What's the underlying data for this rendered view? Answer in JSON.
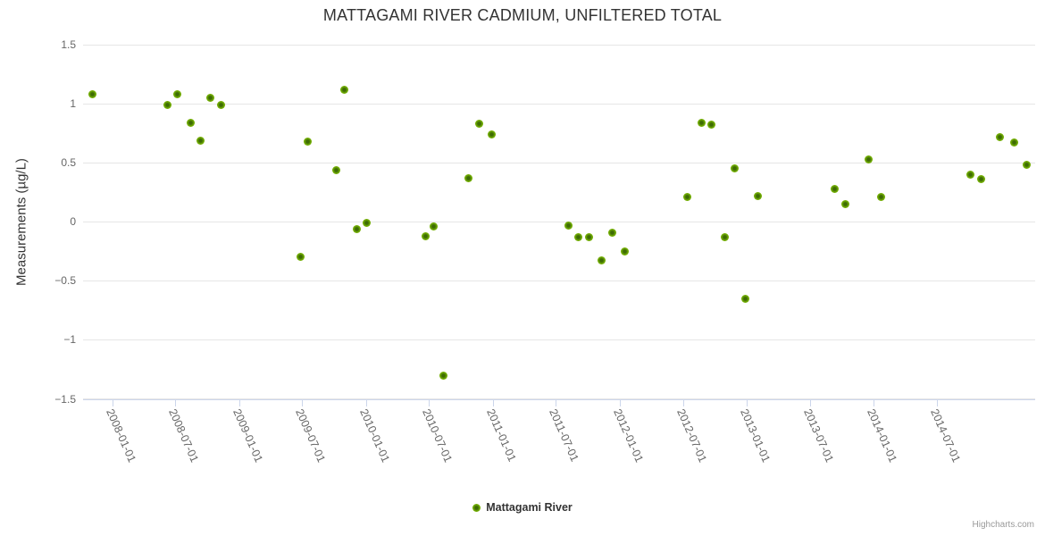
{
  "title": "MATTAGAMI RIVER CADMIUM, UNFILTERED TOTAL",
  "credits": "Highcharts.com",
  "legend": {
    "series_label": "Mattagami River",
    "marker_color": "#7db703"
  },
  "axes": {
    "y_title": "Measurements (µg/L)",
    "y_tick_labels": [
      "1.5",
      "1",
      "0.5",
      "0",
      "−0.5",
      "−1",
      "−1.5"
    ],
    "x_tick_labels": [
      "2008-01-01",
      "2008-07-01",
      "2009-01-01",
      "2009-07-01",
      "2010-01-01",
      "2010-07-01",
      "2011-01-01",
      "2011-07-01",
      "2012-01-01",
      "2012-07-01",
      "2013-01-01",
      "2013-07-01",
      "2014-01-01",
      "2014-07-01"
    ]
  },
  "colors": {
    "point_green": "#7db703",
    "point_core": "#3e6c04",
    "grid": "#e6e6e6",
    "axis_line": "#ccd6eb",
    "text_dark": "#333333",
    "text_muted": "#666666",
    "credits_gray": "#999999"
  },
  "chart_data": {
    "type": "scatter",
    "title": "MATTAGAMI RIVER CADMIUM, UNFILTERED TOTAL",
    "xlabel": "",
    "ylabel": "Measurements (µg/L)",
    "ylim": [
      -1.5,
      1.5
    ],
    "xlim": [
      "2007-10-09",
      "2015-04-10"
    ],
    "grid": "horizontal-only",
    "legend_position": "bottom-center",
    "y_ticks": [
      {
        "label": "1.5",
        "value": 1.5
      },
      {
        "label": "1",
        "value": 1.0
      },
      {
        "label": "0.5",
        "value": 0.5
      },
      {
        "label": "0",
        "value": 0.0
      },
      {
        "label": "−0.5",
        "value": -0.5
      },
      {
        "label": "−1",
        "value": -1.0
      },
      {
        "label": "−1.5",
        "value": -1.5
      }
    ],
    "x_ticks": [
      "2008-01-01",
      "2008-07-01",
      "2009-01-01",
      "2009-07-01",
      "2010-01-01",
      "2010-07-01",
      "2011-01-01",
      "2011-07-01",
      "2012-01-01",
      "2012-07-01",
      "2013-01-01",
      "2013-07-01",
      "2014-01-01",
      "2014-07-01"
    ],
    "series": [
      {
        "name": "Mattagami River",
        "color": "#7db703",
        "points": [
          {
            "date": "2007-11-06",
            "value": 1.08
          },
          {
            "date": "2008-06-09",
            "value": 0.99
          },
          {
            "date": "2008-07-05",
            "value": 1.08
          },
          {
            "date": "2008-08-15",
            "value": 0.84
          },
          {
            "date": "2008-09-12",
            "value": 0.69
          },
          {
            "date": "2008-10-10",
            "value": 1.05
          },
          {
            "date": "2008-11-10",
            "value": 0.99
          },
          {
            "date": "2009-06-26",
            "value": -0.3
          },
          {
            "date": "2009-07-17",
            "value": 0.68
          },
          {
            "date": "2009-10-07",
            "value": 0.44
          },
          {
            "date": "2009-10-29",
            "value": 1.12
          },
          {
            "date": "2009-12-06",
            "value": -0.06
          },
          {
            "date": "2010-01-03",
            "value": -0.01
          },
          {
            "date": "2010-06-21",
            "value": -0.12
          },
          {
            "date": "2010-07-15",
            "value": -0.04
          },
          {
            "date": "2010-08-12",
            "value": -1.3
          },
          {
            "date": "2010-10-23",
            "value": 0.37
          },
          {
            "date": "2010-11-23",
            "value": 0.83
          },
          {
            "date": "2010-12-29",
            "value": 0.74
          },
          {
            "date": "2011-08-07",
            "value": -0.03
          },
          {
            "date": "2011-09-04",
            "value": -0.13
          },
          {
            "date": "2011-10-05",
            "value": -0.13
          },
          {
            "date": "2011-11-10",
            "value": -0.33
          },
          {
            "date": "2011-12-11",
            "value": -0.09
          },
          {
            "date": "2012-01-16",
            "value": -0.25
          },
          {
            "date": "2012-07-13",
            "value": 0.21
          },
          {
            "date": "2012-08-24",
            "value": 0.84
          },
          {
            "date": "2012-09-21",
            "value": 0.82
          },
          {
            "date": "2012-10-30",
            "value": -0.13
          },
          {
            "date": "2012-11-27",
            "value": 0.45
          },
          {
            "date": "2012-12-26",
            "value": -0.65
          },
          {
            "date": "2013-02-02",
            "value": 0.22
          },
          {
            "date": "2013-09-11",
            "value": 0.28
          },
          {
            "date": "2013-10-10",
            "value": 0.15
          },
          {
            "date": "2013-12-16",
            "value": 0.53
          },
          {
            "date": "2014-01-21",
            "value": 0.21
          },
          {
            "date": "2014-10-05",
            "value": 0.4
          },
          {
            "date": "2014-11-05",
            "value": 0.36
          },
          {
            "date": "2014-12-30",
            "value": 0.72
          },
          {
            "date": "2015-02-08",
            "value": 0.67
          },
          {
            "date": "2015-03-16",
            "value": 0.48
          }
        ]
      }
    ]
  }
}
